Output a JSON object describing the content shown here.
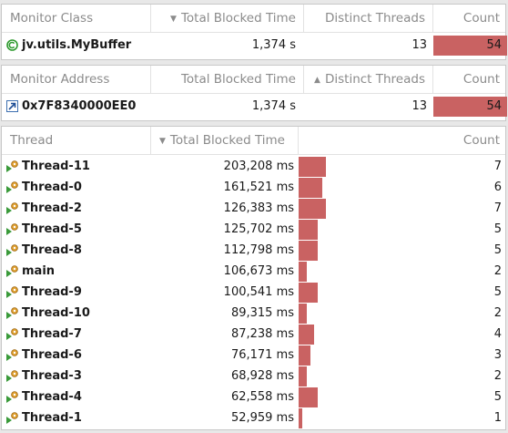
{
  "monitor_class_table": {
    "columns": {
      "class": "Monitor Class",
      "blocked": "Total Blocked Time",
      "threads": "Distinct Threads",
      "count": "Count"
    },
    "sort": {
      "column": "blocked",
      "direction": "descending"
    },
    "row": {
      "class": "jv.utils.MyBuffer",
      "blocked": "1,374 s",
      "threads": "13",
      "count": "54",
      "count_fraction": 1.0,
      "icon": "class-icon"
    }
  },
  "monitor_address_table": {
    "columns": {
      "address": "Monitor Address",
      "blocked": "Total Blocked Time",
      "threads": "Distinct Threads",
      "count": "Count"
    },
    "sort": {
      "column": "threads",
      "direction": "ascending"
    },
    "row": {
      "address": "0x7F8340000EE0",
      "blocked": "1,374 s",
      "threads": "13",
      "count": "54",
      "count_fraction": 1.0,
      "icon": "address-link-icon"
    }
  },
  "thread_table": {
    "columns": {
      "thread": "Thread",
      "blocked": "Total Blocked Time",
      "count": "Count"
    },
    "sort": {
      "column": "blocked",
      "direction": "descending"
    },
    "bar_max_count": 7,
    "rows": [
      {
        "thread": "Thread-11",
        "blocked": "203,208 ms",
        "count": "7",
        "count_value": 7
      },
      {
        "thread": "Thread-0",
        "blocked": "161,521 ms",
        "count": "6",
        "count_value": 6
      },
      {
        "thread": "Thread-2",
        "blocked": "126,383 ms",
        "count": "7",
        "count_value": 7
      },
      {
        "thread": "Thread-5",
        "blocked": "125,702 ms",
        "count": "5",
        "count_value": 5
      },
      {
        "thread": "Thread-8",
        "blocked": "112,798 ms",
        "count": "5",
        "count_value": 5
      },
      {
        "thread": "main",
        "blocked": "106,673 ms",
        "count": "2",
        "count_value": 2
      },
      {
        "thread": "Thread-9",
        "blocked": "100,541 ms",
        "count": "5",
        "count_value": 5
      },
      {
        "thread": "Thread-10",
        "blocked": "89,315 ms",
        "count": "2",
        "count_value": 2
      },
      {
        "thread": "Thread-7",
        "blocked": "87,238 ms",
        "count": "4",
        "count_value": 4
      },
      {
        "thread": "Thread-6",
        "blocked": "76,171 ms",
        "count": "3",
        "count_value": 3
      },
      {
        "thread": "Thread-3",
        "blocked": "68,928 ms",
        "count": "2",
        "count_value": 2
      },
      {
        "thread": "Thread-4",
        "blocked": "62,558 ms",
        "count": "5",
        "count_value": 5
      },
      {
        "thread": "Thread-1",
        "blocked": "52,959 ms",
        "count": "1",
        "count_value": 1
      }
    ]
  },
  "colors": {
    "bar": "#c96262",
    "header_text": "#8b8b8b",
    "class_icon": "#2e9a2e"
  }
}
